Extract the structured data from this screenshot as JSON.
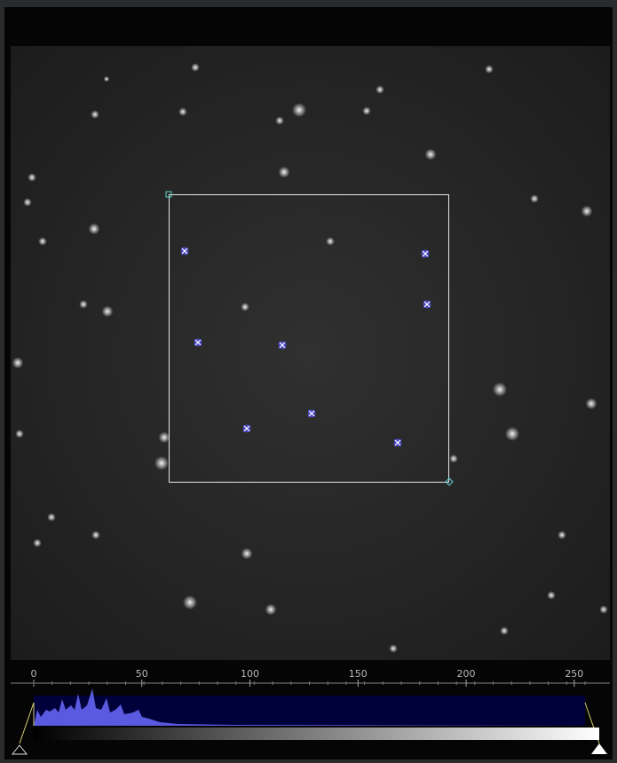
{
  "histogram": {
    "xlim": [
      0,
      255
    ],
    "xticks": [
      0,
      50,
      100,
      150,
      200,
      250
    ]
  }
}
